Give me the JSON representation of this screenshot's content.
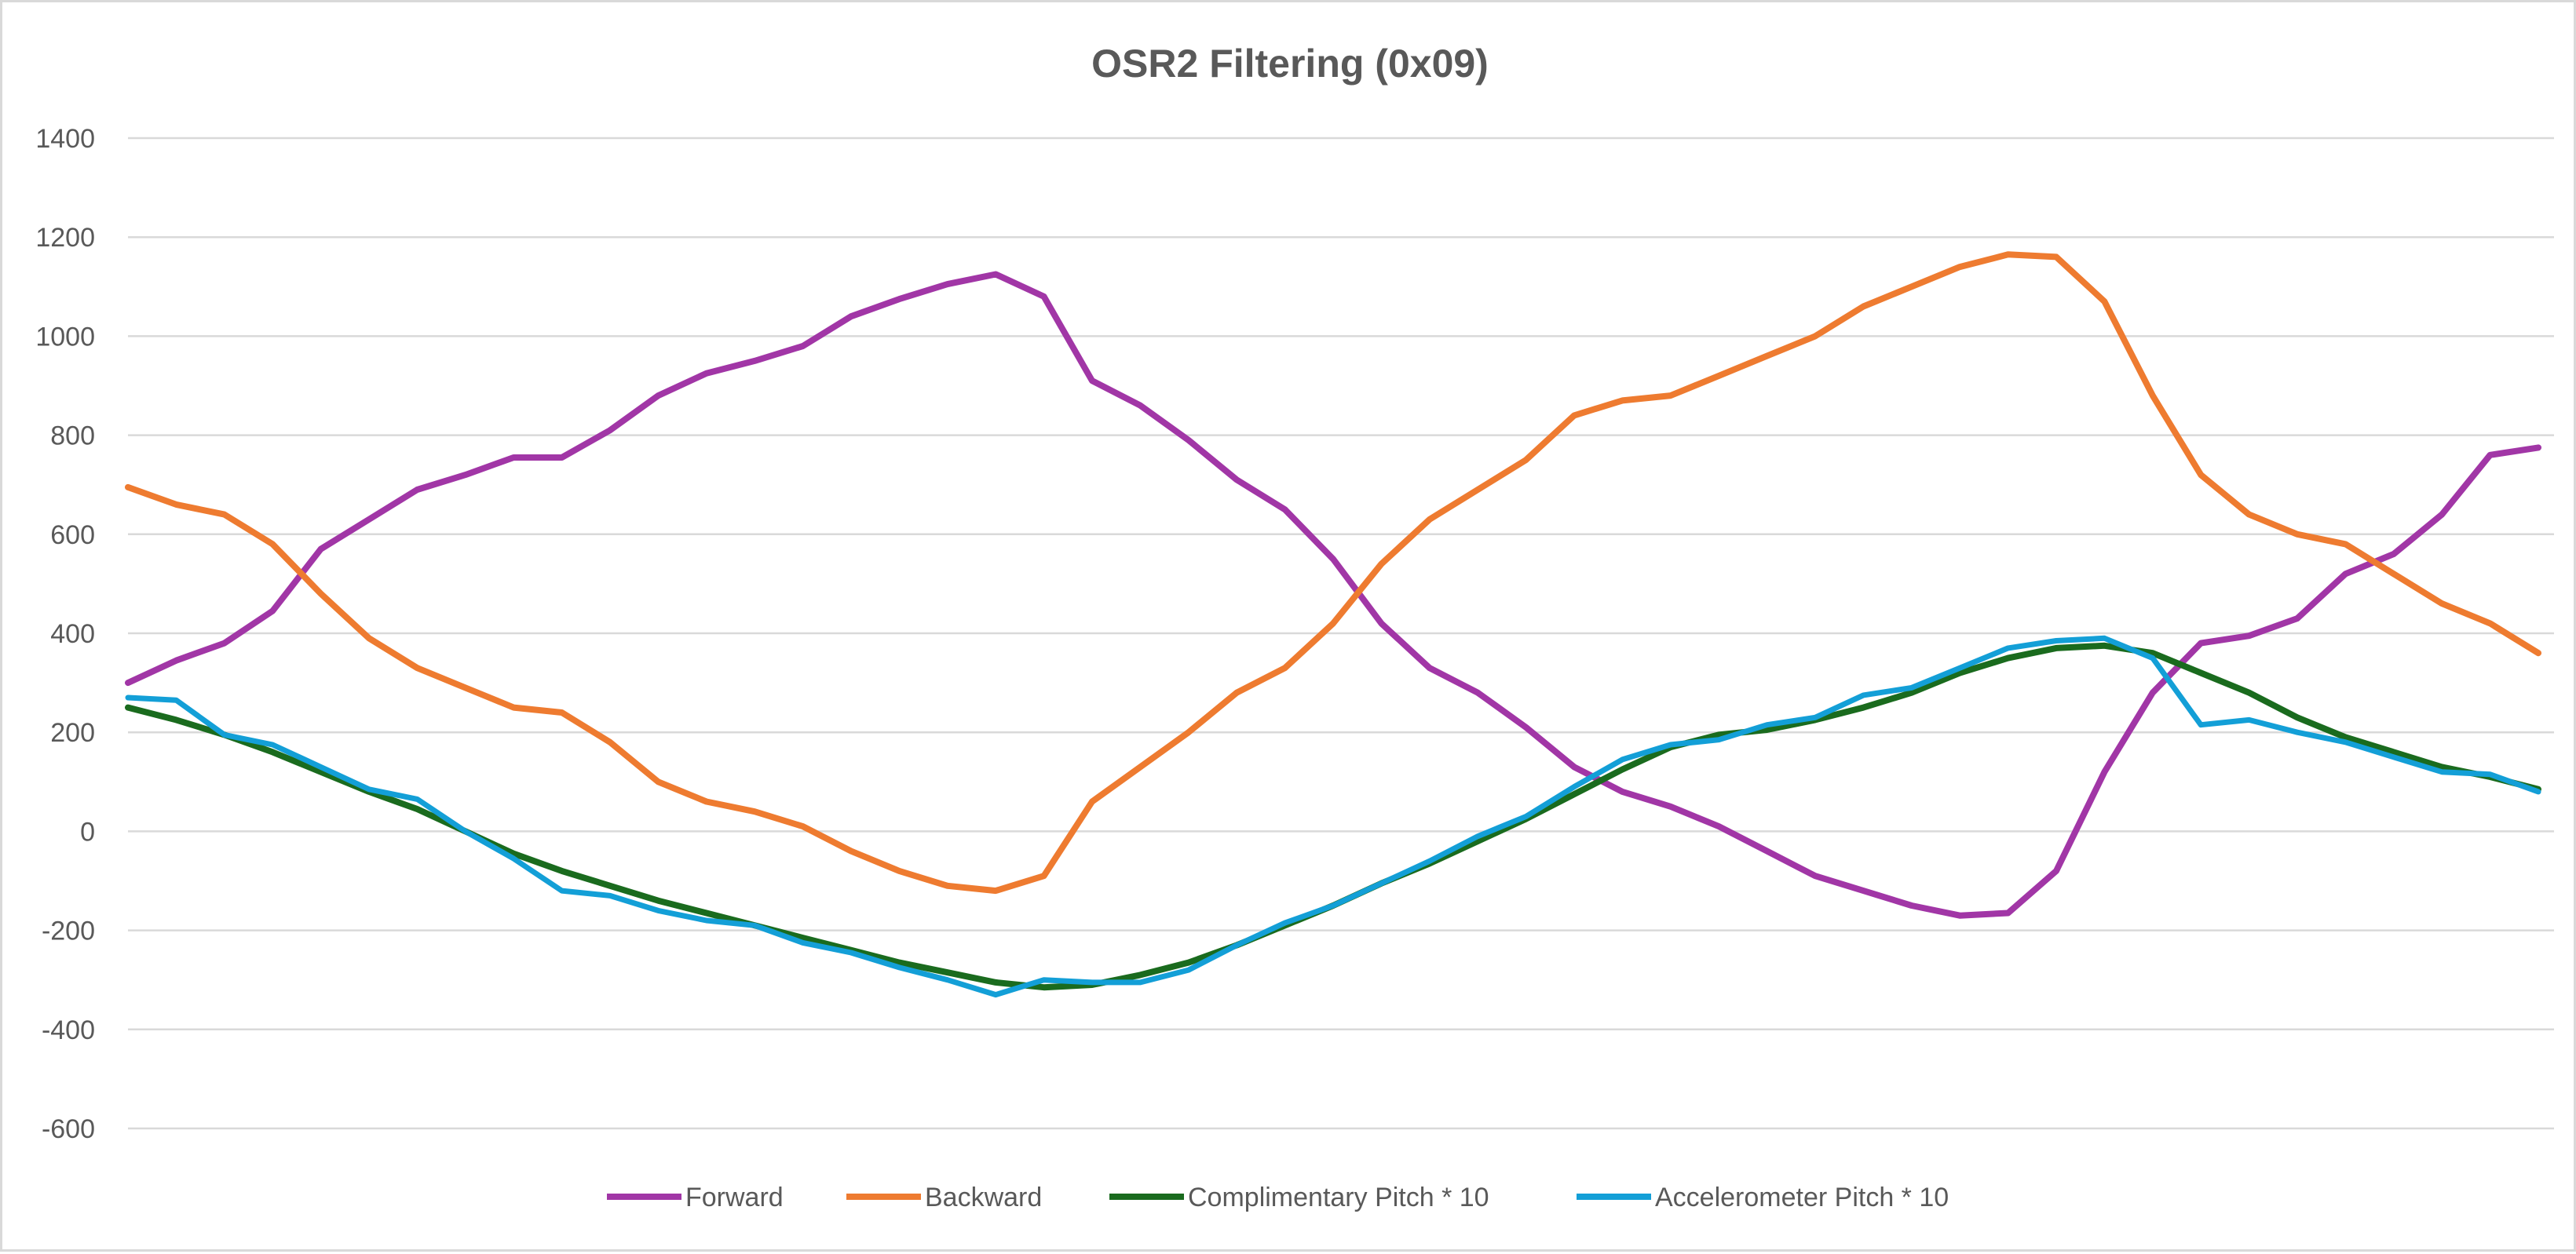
{
  "chart_data": {
    "type": "line",
    "title": "OSR2 Filtering (0x09)",
    "xlabel": "",
    "ylabel": "",
    "ylim": [
      -600,
      1400
    ],
    "y_ticks": [
      1400,
      1200,
      1000,
      800,
      600,
      400,
      200,
      0,
      -200,
      -400,
      -600
    ],
    "grid": true,
    "legend_position": "bottom",
    "x": [
      0,
      10,
      20,
      30,
      40,
      50,
      60,
      70,
      80,
      90,
      100,
      110,
      120,
      130,
      140,
      150,
      160,
      170,
      180,
      190,
      200,
      210,
      220,
      230,
      240,
      250,
      260,
      270,
      280,
      290,
      300,
      310,
      320,
      330,
      340,
      350,
      360,
      370,
      380,
      390,
      400,
      410,
      420,
      430,
      440,
      450,
      460,
      470,
      480,
      490,
      500
    ],
    "series": [
      {
        "name": "Forward",
        "color": "#a136a6",
        "values": [
          300,
          345,
          380,
          445,
          570,
          630,
          690,
          720,
          755,
          755,
          810,
          880,
          925,
          950,
          980,
          1040,
          1075,
          1105,
          1125,
          1080,
          910,
          860,
          790,
          710,
          650,
          550,
          420,
          330,
          280,
          210,
          130,
          80,
          50,
          10,
          -40,
          -90,
          -120,
          -150,
          -170,
          -165,
          -80,
          120,
          280,
          380,
          395,
          430,
          520,
          560,
          640,
          760,
          775
        ]
      },
      {
        "name": "Backward",
        "color": "#ee7b30",
        "values": [
          695,
          660,
          640,
          580,
          480,
          390,
          330,
          290,
          250,
          240,
          180,
          100,
          60,
          40,
          10,
          -40,
          -80,
          -110,
          -120,
          -90,
          60,
          130,
          200,
          280,
          330,
          420,
          540,
          630,
          690,
          750,
          840,
          870,
          880,
          920,
          960,
          1000,
          1060,
          1100,
          1140,
          1165,
          1160,
          1070,
          880,
          720,
          640,
          600,
          580,
          520,
          460,
          420,
          360
        ]
      },
      {
        "name": "Complimentary Pitch * 10",
        "color": "#1a6b1e",
        "values": [
          250,
          225,
          195,
          160,
          120,
          80,
          45,
          0,
          -45,
          -80,
          -110,
          -140,
          -165,
          -190,
          -215,
          -240,
          -265,
          -285,
          -305,
          -315,
          -310,
          -290,
          -265,
          -230,
          -190,
          -150,
          -105,
          -65,
          -20,
          25,
          75,
          125,
          170,
          195,
          205,
          225,
          250,
          280,
          320,
          350,
          370,
          375,
          360,
          320,
          280,
          230,
          190,
          160,
          130,
          110,
          85
        ]
      },
      {
        "name": "Accelerometer Pitch * 10",
        "color": "#139fd7",
        "values": [
          270,
          265,
          195,
          175,
          130,
          85,
          65,
          0,
          -55,
          -120,
          -130,
          -160,
          -180,
          -190,
          -225,
          -245,
          -275,
          -300,
          -330,
          -300,
          -305,
          -305,
          -280,
          -230,
          -185,
          -150,
          -105,
          -60,
          -10,
          30,
          90,
          145,
          175,
          185,
          215,
          230,
          275,
          290,
          330,
          370,
          385,
          390,
          350,
          215,
          225,
          200,
          180,
          150,
          120,
          115,
          80
        ]
      }
    ]
  }
}
